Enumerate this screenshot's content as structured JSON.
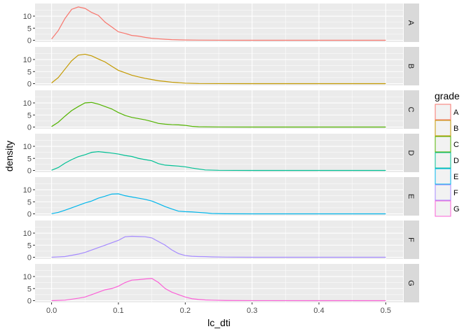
{
  "chart_data": {
    "type": "line",
    "subtype": "density-faceted",
    "title": "",
    "xlabel": "lc_dti",
    "ylabel": "density",
    "xlim": [
      0.0,
      0.5
    ],
    "ylim": [
      0,
      14.5
    ],
    "x_ticks": [
      "0.0",
      "0.1",
      "0.2",
      "0.3",
      "0.4",
      "0.5"
    ],
    "y_ticks": [
      "0",
      "5",
      "10"
    ],
    "grid": true,
    "legend": {
      "title": "grade",
      "position": "right"
    },
    "facets": [
      "A",
      "B",
      "C",
      "D",
      "E",
      "F",
      "G"
    ],
    "colors": {
      "A": "#F8766D",
      "B": "#C49A00",
      "C": "#53B400",
      "D": "#00C094",
      "E": "#00B6EB",
      "F": "#A58AFF",
      "G": "#FB61D7"
    },
    "series": [
      {
        "name": "A",
        "points": [
          [
            0.0,
            0.5
          ],
          [
            0.01,
            4
          ],
          [
            0.02,
            9
          ],
          [
            0.03,
            12.8
          ],
          [
            0.04,
            13.8
          ],
          [
            0.05,
            13.2
          ],
          [
            0.06,
            11.5
          ],
          [
            0.07,
            10.3
          ],
          [
            0.08,
            7.5
          ],
          [
            0.09,
            5.5
          ],
          [
            0.1,
            3.5
          ],
          [
            0.11,
            2.8
          ],
          [
            0.12,
            2.0
          ],
          [
            0.13,
            1.7
          ],
          [
            0.14,
            1.2
          ],
          [
            0.15,
            0.8
          ],
          [
            0.16,
            0.6
          ],
          [
            0.17,
            0.4
          ],
          [
            0.18,
            0.25
          ],
          [
            0.2,
            0.1
          ],
          [
            0.22,
            0.05
          ],
          [
            0.25,
            0.02
          ],
          [
            0.3,
            0.01
          ],
          [
            0.4,
            0.0
          ],
          [
            0.5,
            0.0
          ]
        ]
      },
      {
        "name": "B",
        "points": [
          [
            0.0,
            0.3
          ],
          [
            0.01,
            2.5
          ],
          [
            0.02,
            6
          ],
          [
            0.03,
            9.5
          ],
          [
            0.04,
            11.8
          ],
          [
            0.05,
            12.2
          ],
          [
            0.06,
            11.5
          ],
          [
            0.07,
            10.2
          ],
          [
            0.08,
            9.0
          ],
          [
            0.09,
            7.2
          ],
          [
            0.1,
            5.5
          ],
          [
            0.11,
            4.5
          ],
          [
            0.12,
            3.5
          ],
          [
            0.13,
            2.8
          ],
          [
            0.14,
            2.2
          ],
          [
            0.15,
            1.7
          ],
          [
            0.16,
            1.2
          ],
          [
            0.17,
            0.9
          ],
          [
            0.18,
            0.6
          ],
          [
            0.2,
            0.2
          ],
          [
            0.22,
            0.05
          ],
          [
            0.25,
            0.02
          ],
          [
            0.3,
            0.0
          ],
          [
            0.4,
            0.0
          ],
          [
            0.5,
            0.0
          ]
        ]
      },
      {
        "name": "C",
        "points": [
          [
            0.0,
            0.2
          ],
          [
            0.01,
            2
          ],
          [
            0.02,
            4.5
          ],
          [
            0.03,
            6.8
          ],
          [
            0.04,
            8.5
          ],
          [
            0.05,
            10.0
          ],
          [
            0.06,
            10.2
          ],
          [
            0.07,
            9.5
          ],
          [
            0.08,
            8.5
          ],
          [
            0.09,
            7.5
          ],
          [
            0.1,
            6.0
          ],
          [
            0.11,
            4.8
          ],
          [
            0.12,
            4.0
          ],
          [
            0.13,
            3.5
          ],
          [
            0.14,
            3.0
          ],
          [
            0.15,
            2.3
          ],
          [
            0.16,
            1.5
          ],
          [
            0.17,
            1.2
          ],
          [
            0.18,
            1.0
          ],
          [
            0.19,
            0.9
          ],
          [
            0.2,
            0.7
          ],
          [
            0.21,
            0.3
          ],
          [
            0.22,
            0.1
          ],
          [
            0.25,
            0.02
          ],
          [
            0.3,
            0.0
          ],
          [
            0.4,
            0.0
          ],
          [
            0.5,
            0.0
          ]
        ]
      },
      {
        "name": "D",
        "points": [
          [
            0.0,
            0.1
          ],
          [
            0.01,
            1.2
          ],
          [
            0.02,
            3
          ],
          [
            0.03,
            4.5
          ],
          [
            0.04,
            5.7
          ],
          [
            0.05,
            6.5
          ],
          [
            0.06,
            7.5
          ],
          [
            0.07,
            7.8
          ],
          [
            0.08,
            7.5
          ],
          [
            0.09,
            7.2
          ],
          [
            0.1,
            6.8
          ],
          [
            0.11,
            6.2
          ],
          [
            0.12,
            5.8
          ],
          [
            0.13,
            5.0
          ],
          [
            0.14,
            4.5
          ],
          [
            0.15,
            4.0
          ],
          [
            0.16,
            2.8
          ],
          [
            0.17,
            2.2
          ],
          [
            0.18,
            2.0
          ],
          [
            0.19,
            1.8
          ],
          [
            0.2,
            1.5
          ],
          [
            0.21,
            1.0
          ],
          [
            0.22,
            0.6
          ],
          [
            0.23,
            0.2
          ],
          [
            0.25,
            0.05
          ],
          [
            0.3,
            0.0
          ],
          [
            0.4,
            0.0
          ],
          [
            0.5,
            0.0
          ]
        ]
      },
      {
        "name": "E",
        "points": [
          [
            0.0,
            0.05
          ],
          [
            0.01,
            0.6
          ],
          [
            0.02,
            1.5
          ],
          [
            0.03,
            2.5
          ],
          [
            0.04,
            3.5
          ],
          [
            0.05,
            4.5
          ],
          [
            0.06,
            5.3
          ],
          [
            0.07,
            6.5
          ],
          [
            0.08,
            7.3
          ],
          [
            0.09,
            8.2
          ],
          [
            0.1,
            8.3
          ],
          [
            0.11,
            7.5
          ],
          [
            0.12,
            7.0
          ],
          [
            0.13,
            6.5
          ],
          [
            0.14,
            6.0
          ],
          [
            0.15,
            5.3
          ],
          [
            0.16,
            4.2
          ],
          [
            0.17,
            3.0
          ],
          [
            0.18,
            2.0
          ],
          [
            0.19,
            1.1
          ],
          [
            0.2,
            0.9
          ],
          [
            0.21,
            0.8
          ],
          [
            0.22,
            0.6
          ],
          [
            0.23,
            0.4
          ],
          [
            0.24,
            0.15
          ],
          [
            0.26,
            0.03
          ],
          [
            0.3,
            0.0
          ],
          [
            0.4,
            0.0
          ],
          [
            0.5,
            0.0
          ]
        ]
      },
      {
        "name": "F",
        "points": [
          [
            0.0,
            0.02
          ],
          [
            0.02,
            0.3
          ],
          [
            0.03,
            0.8
          ],
          [
            0.04,
            1.3
          ],
          [
            0.05,
            2.0
          ],
          [
            0.06,
            3.0
          ],
          [
            0.07,
            4.0
          ],
          [
            0.08,
            5.0
          ],
          [
            0.09,
            6.0
          ],
          [
            0.1,
            7.0
          ],
          [
            0.11,
            8.5
          ],
          [
            0.12,
            8.7
          ],
          [
            0.13,
            8.6
          ],
          [
            0.14,
            8.5
          ],
          [
            0.15,
            8.0
          ],
          [
            0.16,
            6.5
          ],
          [
            0.17,
            5.0
          ],
          [
            0.18,
            3.0
          ],
          [
            0.19,
            1.5
          ],
          [
            0.2,
            0.7
          ],
          [
            0.21,
            0.4
          ],
          [
            0.22,
            0.3
          ],
          [
            0.23,
            0.25
          ],
          [
            0.24,
            0.15
          ],
          [
            0.26,
            0.05
          ],
          [
            0.3,
            0.0
          ],
          [
            0.4,
            0.0
          ],
          [
            0.5,
            0.0
          ]
        ]
      },
      {
        "name": "G",
        "points": [
          [
            0.0,
            0.0
          ],
          [
            0.02,
            0.2
          ],
          [
            0.03,
            0.6
          ],
          [
            0.04,
            1.0
          ],
          [
            0.05,
            1.5
          ],
          [
            0.06,
            2.5
          ],
          [
            0.07,
            3.5
          ],
          [
            0.08,
            4.5
          ],
          [
            0.09,
            5.0
          ],
          [
            0.1,
            6.0
          ],
          [
            0.11,
            7.5
          ],
          [
            0.12,
            8.5
          ],
          [
            0.13,
            8.7
          ],
          [
            0.14,
            9.0
          ],
          [
            0.15,
            9.2
          ],
          [
            0.16,
            7.5
          ],
          [
            0.17,
            5.0
          ],
          [
            0.18,
            3.5
          ],
          [
            0.19,
            2.5
          ],
          [
            0.2,
            1.5
          ],
          [
            0.21,
            0.8
          ],
          [
            0.22,
            0.5
          ],
          [
            0.23,
            0.3
          ],
          [
            0.24,
            0.2
          ],
          [
            0.26,
            0.08
          ],
          [
            0.3,
            0.02
          ],
          [
            0.4,
            0.0
          ],
          [
            0.5,
            0.0
          ]
        ]
      }
    ]
  }
}
